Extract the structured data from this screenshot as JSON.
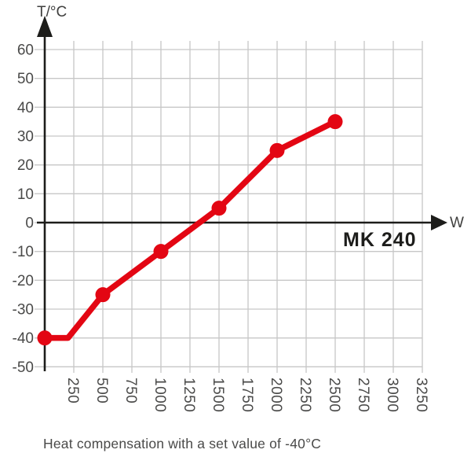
{
  "y_axis_title": "T/°C",
  "x_axis_unit": "W",
  "model_label": "MK 240",
  "caption": "Heat compensation with a set value of -40°C",
  "colors": {
    "series_red": "#e30613",
    "grid_gray": "#c7c7c7",
    "axis_black": "#1d1d1b",
    "tick_text_gray": "#4a4a49"
  },
  "chart_data": {
    "type": "line",
    "title": "",
    "xlabel": "W",
    "ylabel": "T/°C",
    "x_range": [
      0,
      3250
    ],
    "y_range": [
      -50,
      60
    ],
    "x_ticks": [
      250,
      500,
      750,
      1000,
      1250,
      1500,
      1750,
      2000,
      2250,
      2500,
      2750,
      3000,
      3250
    ],
    "y_ticks": [
      60,
      50,
      40,
      30,
      20,
      10,
      0,
      -10,
      -20,
      -30,
      -40,
      -50
    ],
    "grid": true,
    "annotation": "MK 240",
    "series": [
      {
        "name": "MK 240 heat compensation",
        "color": "#e30613",
        "line_points": [
          [
            0,
            -40
          ],
          [
            200,
            -40
          ],
          [
            500,
            -25
          ],
          [
            1000,
            -10
          ],
          [
            1500,
            5
          ],
          [
            2000,
            25
          ],
          [
            2500,
            35
          ]
        ],
        "marker_points": [
          [
            0,
            -40
          ],
          [
            500,
            -25
          ],
          [
            1000,
            -10
          ],
          [
            1500,
            5
          ],
          [
            2000,
            25
          ],
          [
            2500,
            35
          ]
        ]
      }
    ]
  }
}
